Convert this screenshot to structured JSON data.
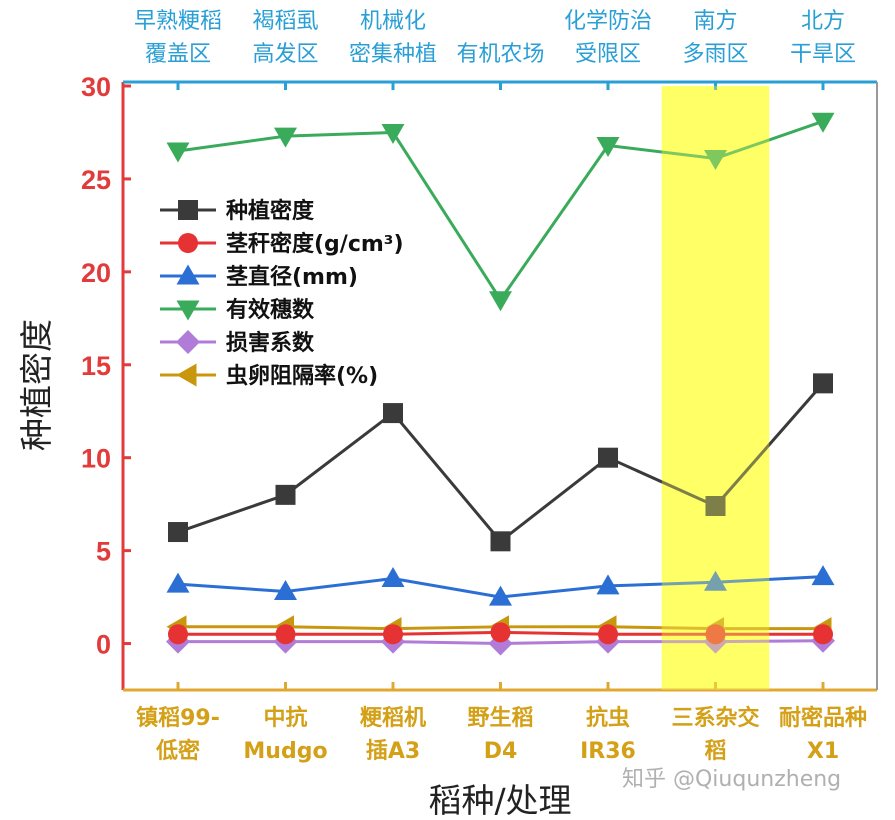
{
  "chart_data": {
    "type": "line",
    "categories_bottom": [
      "镇稻99-\n低密",
      "中抗\nMudgo",
      "粳稻机\n插A3",
      "野生稻\nD4",
      "抗虫\nIR36",
      "三系杂交\n稻",
      "耐密品种\nX1"
    ],
    "categories_top": [
      "早熟粳稻\n覆盖区",
      "褐稻虱\n高发区",
      "机械化\n密集种植",
      "有机农场",
      "化学防治\n受限区",
      "南方\n多雨区",
      "北方\n干旱区"
    ],
    "ylabel": "种植密度",
    "xlabel": "稻种/处理",
    "ylim": [
      -2.5,
      30
    ],
    "yticks": [
      0,
      5,
      10,
      15,
      20,
      25,
      30
    ],
    "highlight_category_index": 5,
    "highlight_color": "#ffff66",
    "legend_position": "upper-left",
    "series": [
      {
        "name": "种植密度",
        "values": [
          6.0,
          8.0,
          12.4,
          5.5,
          10.0,
          7.4,
          14.0
        ],
        "color": "#3a3a3a",
        "marker": "square"
      },
      {
        "name": "茎秆密度(g/cm³)",
        "values": [
          0.5,
          0.5,
          0.5,
          0.6,
          0.5,
          0.5,
          0.5
        ],
        "color": "#e63232",
        "marker": "circle"
      },
      {
        "name": "茎直径(mm)",
        "values": [
          3.2,
          2.8,
          3.5,
          2.5,
          3.1,
          3.3,
          3.6
        ],
        "color": "#2c6fd4",
        "marker": "triangle-up"
      },
      {
        "name": "有效穗数",
        "values": [
          26.5,
          27.3,
          27.5,
          18.5,
          26.8,
          26.1,
          28.1
        ],
        "color": "#3aab5a",
        "marker": "triangle-down"
      },
      {
        "name": "损害系数",
        "values": [
          0.1,
          0.1,
          0.1,
          0.0,
          0.1,
          0.1,
          0.15
        ],
        "color": "#b07cd8",
        "marker": "diamond"
      },
      {
        "name": "虫卵阻隔率(%)",
        "values": [
          0.9,
          0.9,
          0.8,
          0.9,
          0.9,
          0.8,
          0.8
        ],
        "color": "#c9970e",
        "marker": "triangle-left"
      }
    ]
  },
  "watermark": "知乎 @Qiuqunzheng",
  "colors": {
    "axis_left": "#e23b3b",
    "axis_bottom": "#e0a830",
    "axis_top": "#2a9fd6",
    "axis_right": "#999999"
  }
}
